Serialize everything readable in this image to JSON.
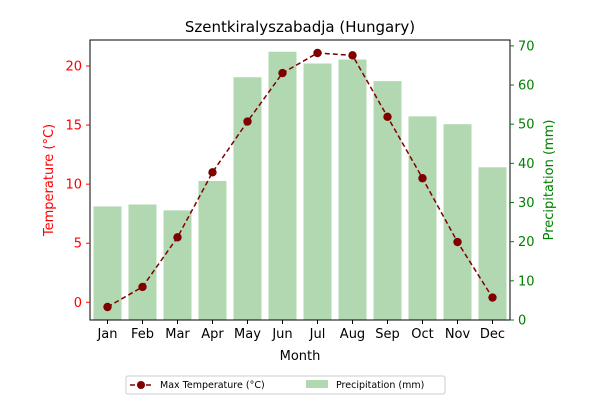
{
  "chart_data": {
    "type": "bar",
    "title": "Szentkiralyszabadja (Hungary)",
    "xlabel": "Month",
    "categories": [
      "Jan",
      "Feb",
      "Mar",
      "Apr",
      "May",
      "Jun",
      "Jul",
      "Aug",
      "Sep",
      "Oct",
      "Nov",
      "Dec"
    ],
    "left_axis": {
      "label": "Temperature (°C)",
      "ylim": [
        -1.5,
        22.2
      ],
      "ticks": [
        0,
        5,
        10,
        15,
        20
      ],
      "color": "#ff0000"
    },
    "right_axis": {
      "label": "Precipitation (mm)",
      "ylim": [
        0,
        71.5
      ],
      "ticks": [
        0,
        10,
        20,
        30,
        40,
        50,
        60,
        70
      ],
      "color": "#008000"
    },
    "series": [
      {
        "name": "Max Temperature (°C)",
        "type": "line",
        "axis": "left",
        "color": "#800000",
        "style": "dashed",
        "marker": "circle",
        "values": [
          -0.4,
          1.3,
          5.5,
          11.0,
          15.3,
          19.4,
          21.1,
          20.9,
          15.7,
          10.5,
          5.1,
          0.4
        ]
      },
      {
        "name": "Precipitation (mm)",
        "type": "bar",
        "axis": "right",
        "color": "#b2d8b2",
        "values": [
          29,
          29.5,
          28,
          35.5,
          62,
          68.5,
          65.5,
          66.5,
          61,
          52,
          50,
          39
        ]
      }
    ],
    "legend_position": "bottom-center",
    "grid": false
  }
}
